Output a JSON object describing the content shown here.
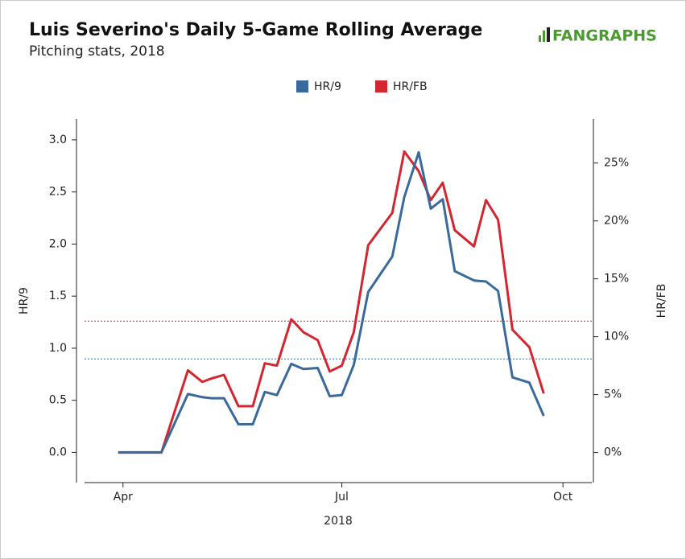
{
  "chart_data": {
    "type": "line",
    "title": "Luis Severino's Daily 5-Game Rolling Average",
    "subtitle": "Pitching stats, 2018",
    "brand": "FANGRAPHS",
    "x_label": "2018",
    "y_label": "HR/9",
    "y2_label": "HR/FB",
    "x": [
      "2018-03-30",
      "2018-04-17",
      "2018-04-28",
      "2018-05-04",
      "2018-05-08",
      "2018-05-13",
      "2018-05-19",
      "2018-05-25",
      "2018-05-30",
      "2018-06-04",
      "2018-06-10",
      "2018-06-15",
      "2018-06-21",
      "2018-06-26",
      "2018-07-01",
      "2018-07-06",
      "2018-07-12",
      "2018-07-22",
      "2018-07-27",
      "2018-08-02",
      "2018-08-07",
      "2018-08-12",
      "2018-08-17",
      "2018-08-25",
      "2018-08-30",
      "2018-09-04",
      "2018-09-10",
      "2018-09-17",
      "2018-09-23"
    ],
    "series": [
      {
        "name": "HR/9",
        "color": "#3a6a9b",
        "axis": "y",
        "values": [
          0,
          0,
          0.56,
          0.53,
          0.52,
          0.52,
          0.27,
          0.27,
          0.58,
          0.55,
          0.85,
          0.8,
          0.81,
          0.54,
          0.55,
          0.84,
          1.54,
          1.88,
          2.45,
          2.88,
          2.34,
          2.43,
          1.74,
          1.65,
          1.64,
          1.55,
          0.72,
          0.67,
          0.35
        ]
      },
      {
        "name": "HR/FB",
        "color": "#d22630",
        "axis": "y2",
        "values": [
          0,
          0,
          7.1,
          6.1,
          6.4,
          6.7,
          4.0,
          4.0,
          7.7,
          7.5,
          11.5,
          10.4,
          9.7,
          7.0,
          7.5,
          10.4,
          17.9,
          20.7,
          26.0,
          24.3,
          21.8,
          23.3,
          19.2,
          17.8,
          21.8,
          20.1,
          10.6,
          9.1,
          5.1
        ]
      }
    ],
    "reference_lines": [
      {
        "axis": "y",
        "value": 0.897,
        "color": "#3a6a9b"
      },
      {
        "axis": "y2",
        "value": 11.35,
        "color": "#d22630"
      }
    ],
    "xlim": [
      "2018-03-16",
      "2018-10-13"
    ],
    "xticks": [
      {
        "value": "2018-04-01",
        "label": "Apr"
      },
      {
        "value": "2018-07-01",
        "label": "Jul"
      },
      {
        "value": "2018-10-01",
        "label": "Oct"
      }
    ],
    "ylim": [
      -0.29,
      3.2
    ],
    "yticks": [
      {
        "value": 0,
        "label": "0.0"
      },
      {
        "value": 0.5,
        "label": "0.5"
      },
      {
        "value": 1,
        "label": "1.0"
      },
      {
        "value": 1.5,
        "label": "1.5"
      },
      {
        "value": 2,
        "label": "2.0"
      },
      {
        "value": 2.5,
        "label": "2.5"
      },
      {
        "value": 3,
        "label": "3.0"
      }
    ],
    "y2lim": [
      -2.6,
      28.8
    ],
    "y2ticks": [
      {
        "value": 0,
        "label": "0%"
      },
      {
        "value": 5,
        "label": "5%"
      },
      {
        "value": 10,
        "label": "10%"
      },
      {
        "value": 15,
        "label": "15%"
      },
      {
        "value": 20,
        "label": "20%"
      },
      {
        "value": 25,
        "label": "25%"
      }
    ],
    "legend": "top"
  }
}
